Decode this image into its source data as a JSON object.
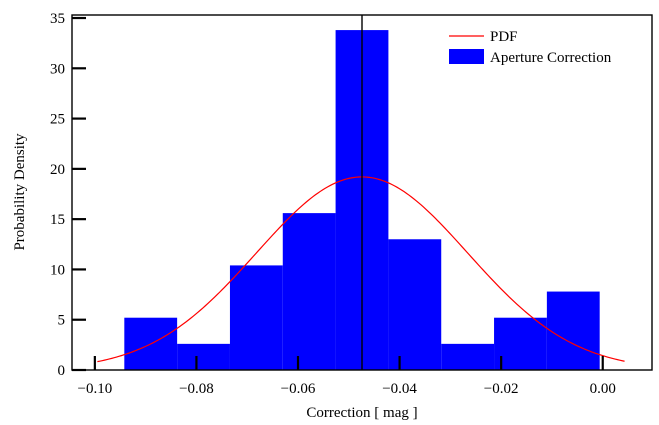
{
  "chart_data": {
    "type": "histogram",
    "xlabel": "Correction [ mag ]",
    "ylabel": "Probability Density",
    "xlim": [
      -0.1045,
      0.0097
    ],
    "ylim": [
      0,
      35.3
    ],
    "xticks": [
      -0.1,
      -0.08,
      -0.06,
      -0.04,
      -0.02,
      0.0
    ],
    "xtick_labels": [
      "−0.10",
      "−0.08",
      "−0.06",
      "−0.04",
      "−0.02",
      "0.00"
    ],
    "yticks": [
      0,
      5,
      10,
      15,
      20,
      25,
      30,
      35
    ],
    "ytick_labels": [
      "0",
      "5",
      "10",
      "15",
      "20",
      "25",
      "30",
      "35"
    ],
    "legend_position": "top-right",
    "series": [
      {
        "name": "Aperture Correction",
        "kind": "histogram",
        "color": "#0000ff",
        "bin_edges": [
          -0.0942,
          -0.0838,
          -0.0734,
          -0.063,
          -0.0526,
          -0.0422,
          -0.0318,
          -0.0214,
          -0.011,
          -0.0006
        ],
        "values": [
          5.2,
          2.6,
          10.4,
          15.6,
          33.8,
          13.0,
          2.6,
          5.2,
          7.8
        ]
      },
      {
        "name": "PDF",
        "kind": "line",
        "color": "#ff0000",
        "mean": -0.0474,
        "peak_density": 19.2,
        "x_range": [
          -0.0995,
          0.0043
        ]
      }
    ],
    "vertical_line": {
      "x": -0.0474,
      "color": "#000000"
    }
  }
}
